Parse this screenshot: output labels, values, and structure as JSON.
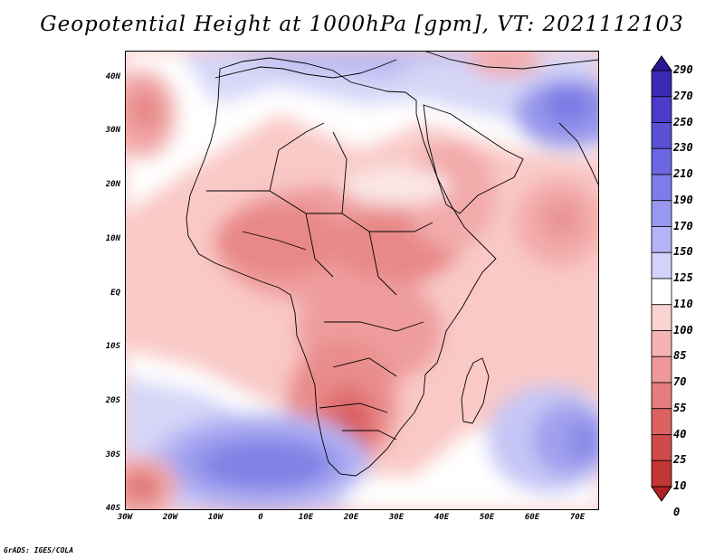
{
  "title": "Geopotential Height at 1000hPa [gpm], VT: 2021112103",
  "credit": "GrADS: IGES/COLA",
  "map": {
    "variable": "Geopotential Height",
    "level": "1000hPa",
    "units": "gpm",
    "valid_time": "2021112103",
    "lat_range": [
      -40,
      45
    ],
    "lon_range": [
      -30,
      75
    ]
  },
  "lat_labels": [
    "40N",
    "30N",
    "20N",
    "10N",
    "EQ",
    "10S",
    "20S",
    "30S",
    "40S"
  ],
  "lon_labels": [
    "30W",
    "20W",
    "10W",
    "0",
    "10E",
    "20E",
    "30E",
    "40E",
    "50E",
    "60E",
    "70E"
  ],
  "colorbar": {
    "levels": [
      "290",
      "270",
      "250",
      "230",
      "210",
      "190",
      "170",
      "150",
      "125",
      "110",
      "100",
      "85",
      "70",
      "55",
      "40",
      "25",
      "10",
      "0"
    ],
    "colors": [
      "#2a1896",
      "#3a2ab4",
      "#4a3cc8",
      "#5a50d6",
      "#6c66e2",
      "#7e7cea",
      "#9898f0",
      "#b4b4f6",
      "#d2d2fa",
      "#ffffff",
      "#fad2d2",
      "#f4b4b4",
      "#ee9898",
      "#e67c7c",
      "#dc6262",
      "#d04a4a",
      "#c23636",
      "#b02222"
    ]
  }
}
